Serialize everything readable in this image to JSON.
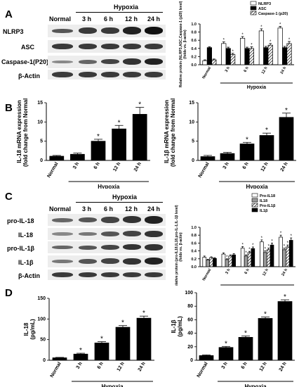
{
  "panels": {
    "A": "A",
    "B": "B",
    "C": "C",
    "D": "D"
  },
  "blots": {
    "A": {
      "condition_label": "Hypoxia",
      "columns": [
        "Normal",
        "3 h",
        "6 h",
        "12 h",
        "24 h"
      ],
      "rows": [
        "NLRP3",
        "ASC",
        "Caspase-1(P20)",
        "β-Actin"
      ]
    },
    "C": {
      "condition_label": "Hypoxia",
      "columns": [
        "Normal",
        "3 h",
        "6 h",
        "12 h",
        "24 h"
      ],
      "rows": [
        "pro-IL-18",
        "IL-18",
        "pro-IL-1β",
        "IL-1β",
        "β-Actin"
      ]
    }
  },
  "chart_data": [
    {
      "id": "A-bar",
      "type": "bar",
      "ylabel": "Relative protein (NLRP3,ASC,Caspase-1 (p20) level) (folds vs. β-actin)",
      "xgroup_label": "Hypoxia",
      "categories": [
        "Normal",
        "3 h",
        "6 h",
        "12 h",
        "24 h"
      ],
      "ylim": [
        0,
        1.0
      ],
      "yticks": [
        "0.0",
        "0.2",
        "0.4",
        "0.6",
        "0.8",
        "1.0"
      ],
      "legend": "top-right",
      "series": [
        {
          "name": "NLRP3",
          "values": [
            0.1,
            0.52,
            0.65,
            0.83,
            0.9
          ],
          "color": "#ffffff",
          "err": [
            0.02,
            0.04,
            0.04,
            0.05,
            0.04
          ],
          "sig": [
            false,
            true,
            true,
            true,
            true
          ]
        },
        {
          "name": "ASC",
          "values": [
            0.42,
            0.4,
            0.4,
            0.42,
            0.42
          ],
          "color": "#000000",
          "err": [
            0.02,
            0.03,
            0.03,
            0.03,
            0.03
          ],
          "sig": [
            false,
            false,
            false,
            false,
            false
          ]
        },
        {
          "name": "Caspase-1 (p20)",
          "values": [
            0.12,
            0.25,
            0.4,
            0.48,
            0.52
          ],
          "color": "hatch",
          "err": [
            0.02,
            0.03,
            0.04,
            0.04,
            0.05
          ],
          "sig": [
            false,
            true,
            true,
            true,
            true
          ]
        }
      ]
    },
    {
      "id": "B-left",
      "type": "bar",
      "ylabel": "IL-18 mRNA expression (fold change from Normal)",
      "xgroup_label": "Hypoxia",
      "categories": [
        "Normal",
        "3 h",
        "6 h",
        "12 h",
        "24 h"
      ],
      "ylim": [
        0,
        15
      ],
      "yticks": [
        "0",
        "5",
        "10",
        "15"
      ],
      "series": [
        {
          "name": "",
          "values": [
            1.1,
            1.6,
            5.0,
            8.2,
            12.0
          ],
          "color": "#000000",
          "err": [
            0.2,
            0.3,
            0.5,
            0.9,
            1.8
          ],
          "sig": [
            false,
            false,
            true,
            true,
            true
          ]
        }
      ]
    },
    {
      "id": "B-right",
      "type": "bar",
      "ylabel": "IL-1β mRNA expression (fold change from Normal)",
      "xgroup_label": "Hypoxia",
      "categories": [
        "Normal",
        "3 h",
        "6 h",
        "12 h",
        "24 h"
      ],
      "ylim": [
        0,
        15
      ],
      "yticks": [
        "0",
        "5",
        "10",
        "15"
      ],
      "series": [
        {
          "name": "",
          "values": [
            1.0,
            1.8,
            4.3,
            6.5,
            11.2
          ],
          "color": "#000000",
          "err": [
            0.3,
            0.3,
            0.4,
            0.6,
            1.1
          ],
          "sig": [
            false,
            false,
            true,
            true,
            true
          ]
        }
      ]
    },
    {
      "id": "C-bar",
      "type": "bar",
      "ylabel": "Relative protein (pro-IL18,IL18,pro-IL-1,IL-1β level) (folds vs. β-actin)",
      "xgroup_label": "Hypoxia",
      "categories": [
        "Normal",
        "3 h",
        "6 h",
        "12 h",
        "24 h"
      ],
      "ylim": [
        0,
        1.0
      ],
      "yticks": [
        "0.0",
        "0.2",
        "0.4",
        "0.6",
        "0.8",
        "1.0"
      ],
      "legend": "top-right",
      "series": [
        {
          "name": "Pro-IL18",
          "values": [
            0.24,
            0.32,
            0.47,
            0.63,
            0.75
          ],
          "color": "#ffffff",
          "err": [
            0.03,
            0.03,
            0.04,
            0.05,
            0.05
          ],
          "sig": [
            false,
            false,
            true,
            true,
            true
          ]
        },
        {
          "name": "IL18",
          "values": [
            0.17,
            0.18,
            0.27,
            0.36,
            0.43
          ],
          "color": "#9a9a9a",
          "err": [
            0.02,
            0.02,
            0.03,
            0.04,
            0.04
          ],
          "sig": [
            false,
            true,
            true,
            true,
            true
          ]
        },
        {
          "name": "Pro-IL1β",
          "values": [
            0.23,
            0.27,
            0.36,
            0.43,
            0.5
          ],
          "color": "hatch",
          "err": [
            0.02,
            0.03,
            0.03,
            0.04,
            0.05
          ],
          "sig": [
            false,
            false,
            true,
            true,
            true
          ]
        },
        {
          "name": "IL1β",
          "values": [
            0.21,
            0.3,
            0.46,
            0.55,
            0.67
          ],
          "color": "#000000",
          "err": [
            0.02,
            0.03,
            0.04,
            0.05,
            0.06
          ],
          "sig": [
            false,
            false,
            true,
            true,
            true
          ]
        }
      ]
    },
    {
      "id": "D-left",
      "type": "bar",
      "ylabel": "IL-18 (pg/mL)",
      "xgroup_label": "Hypoxia",
      "categories": [
        "Normal",
        "3 h",
        "6 h",
        "12 h",
        "24 h"
      ],
      "ylim": [
        0,
        150
      ],
      "yticks": [
        "0",
        "50",
        "100",
        "150"
      ],
      "series": [
        {
          "name": "",
          "values": [
            6,
            15,
            42,
            80,
            102
          ],
          "color": "#000000",
          "err": [
            1,
            2,
            3,
            4,
            5
          ],
          "sig": [
            false,
            true,
            true,
            true,
            true
          ]
        }
      ]
    },
    {
      "id": "D-right",
      "type": "bar",
      "ylabel": "IL-1β (pg/mL)",
      "xgroup_label": "Hypoxia",
      "categories": [
        "Normal",
        "3 h",
        "6 h",
        "12 h",
        "24 h"
      ],
      "ylim": [
        0,
        100
      ],
      "yticks": [
        "0",
        "20",
        "40",
        "60",
        "80",
        "100"
      ],
      "series": [
        {
          "name": "",
          "values": [
            7,
            19,
            34,
            62,
            87
          ],
          "color": "#000000",
          "err": [
            1,
            1.5,
            2,
            2,
            2.5
          ],
          "sig": [
            false,
            true,
            true,
            true,
            true
          ]
        }
      ]
    }
  ]
}
